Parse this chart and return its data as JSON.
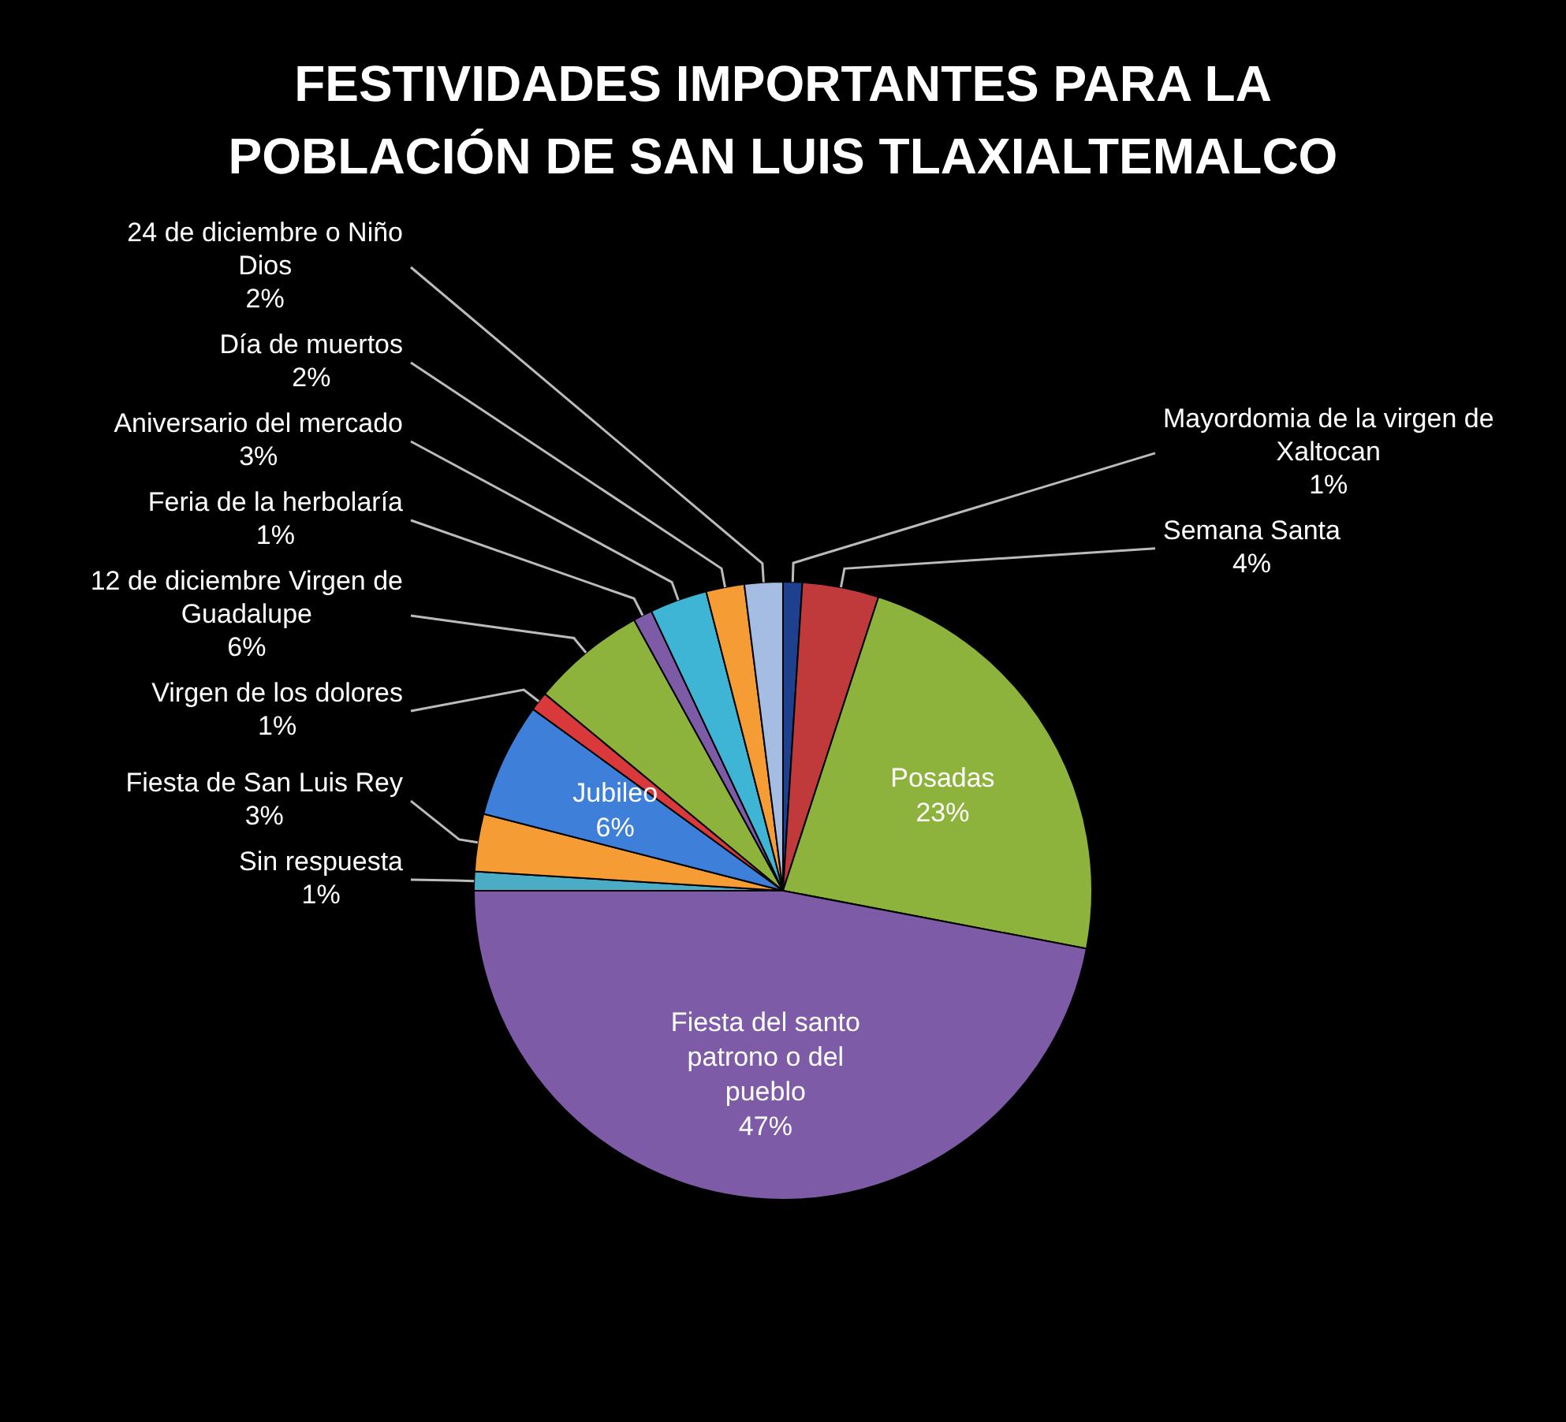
{
  "chart_data": {
    "type": "pie",
    "title": "FESTIVIDADES IMPORTANTES PARA LA POBLACIÓN DE SAN LUIS TLAXIALTEMALCO",
    "categories": [
      "Mayordomia de la virgen de Xaltocan",
      "Semana Santa",
      "Posadas",
      "Fiesta del santo patrono o del pueblo",
      "Sin respuesta",
      "Fiesta de San Luis Rey",
      "Jubileo",
      "Virgen de los dolores",
      "12 de diciembre Virgen de Guadalupe",
      "Feria de la herbolaría",
      "Aniversario del mercado",
      "Día de muertos",
      "24 de diciembre o Niño Dios"
    ],
    "values": [
      1,
      4,
      23,
      47,
      1,
      3,
      6,
      1,
      6,
      1,
      3,
      2,
      2
    ],
    "value_labels": [
      "1%",
      "4%",
      "23%",
      "47%",
      "1%",
      "3%",
      "6%",
      "1%",
      "6%",
      "1%",
      "3%",
      "2%",
      "2%"
    ],
    "colors": [
      "#1f3f8f",
      "#c0393b",
      "#8db33c",
      "#7d5ba6",
      "#4bacc6",
      "#f59c35",
      "#3d7fd9",
      "#d9393b",
      "#8db33c",
      "#7d5ba6",
      "#3fb5d6",
      "#f59c35",
      "#a6bde3"
    ]
  }
}
